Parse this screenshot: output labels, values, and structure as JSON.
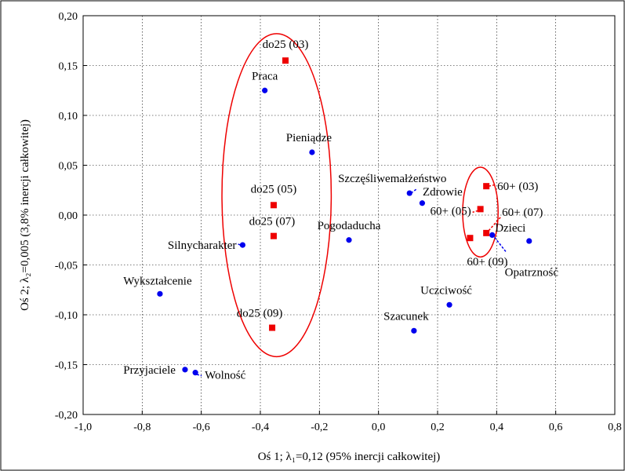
{
  "chart_data": {
    "type": "scatter",
    "xlabel": "Oś 1; λ₁=0,12 (95% inercji całkowitej)",
    "ylabel": "Oś 2; λ₂=0,005 (3,8% inercji całkowitej)",
    "xlim": [
      -1.0,
      0.8
    ],
    "ylim": [
      -0.2,
      0.2
    ],
    "x_ticks": [
      -1.0,
      -0.8,
      -0.6,
      -0.4,
      -0.2,
      0.0,
      0.2,
      0.4,
      0.6,
      0.8
    ],
    "x_tick_labels": [
      "-1,0",
      "-0,8",
      "-0,6",
      "-0,4",
      "-0,2",
      "0,0",
      "0,2",
      "0,4",
      "0,6",
      "0,8"
    ],
    "y_ticks": [
      -0.2,
      -0.15,
      -0.1,
      -0.05,
      0.0,
      0.05,
      0.1,
      0.15,
      0.2
    ],
    "y_tick_labels": [
      "-0,20",
      "-0,15",
      "-0,10",
      "-0,05",
      "0,00",
      "0,05",
      "0,10",
      "0,15",
      "0,20"
    ],
    "grid": true,
    "series": [
      {
        "marker": "circle",
        "color": "#0000ee",
        "points": [
          {
            "label": "Praca",
            "x": -0.385,
            "y": 0.125
          },
          {
            "label": "Pieniądze",
            "x": -0.225,
            "y": 0.063
          },
          {
            "label": "Szczęśliwemałżeństwo",
            "x": 0.105,
            "y": 0.022
          },
          {
            "label": "Zdrowie",
            "x": 0.148,
            "y": 0.012
          },
          {
            "label": "Pogodaducha",
            "x": -0.1,
            "y": -0.025
          },
          {
            "label": "Silnycharakter",
            "x": -0.46,
            "y": -0.03
          },
          {
            "label": "Dzieci",
            "x": 0.51,
            "y": -0.026
          },
          {
            "label": "Opatrzność",
            "x": 0.385,
            "y": -0.02
          },
          {
            "label": "Wykształcenie",
            "x": -0.74,
            "y": -0.079
          },
          {
            "label": "Uczciwość",
            "x": 0.24,
            "y": -0.09
          },
          {
            "label": "Szacunek",
            "x": 0.12,
            "y": -0.116
          },
          {
            "label": "Przyjaciele",
            "x": -0.655,
            "y": -0.155
          },
          {
            "label": "Wolność",
            "x": -0.62,
            "y": -0.158
          }
        ]
      },
      {
        "marker": "square",
        "color": "#ee0000",
        "points": [
          {
            "label": "do25 (03)",
            "x": -0.315,
            "y": 0.155
          },
          {
            "label": "do25 (05)",
            "x": -0.355,
            "y": 0.01
          },
          {
            "label": "do25 (07)",
            "x": -0.355,
            "y": -0.021
          },
          {
            "label": "do25 (09)",
            "x": -0.36,
            "y": -0.113
          },
          {
            "label": "60+ (03)",
            "x": 0.365,
            "y": 0.029
          },
          {
            "label": "60+ (05)",
            "x": 0.345,
            "y": 0.006
          },
          {
            "label": "60+ (07)",
            "x": 0.365,
            "y": -0.018
          },
          {
            "label": "60+ (09)",
            "x": 0.31,
            "y": -0.023
          }
        ]
      }
    ],
    "ellipses": [
      {
        "cx": -0.345,
        "cy": 0.02,
        "rx": 0.185,
        "ry": 0.162,
        "color": "#ee0000"
      },
      {
        "cx": 0.345,
        "cy": 0.003,
        "rx": 0.06,
        "ry": 0.045,
        "color": "#ee0000"
      }
    ]
  }
}
